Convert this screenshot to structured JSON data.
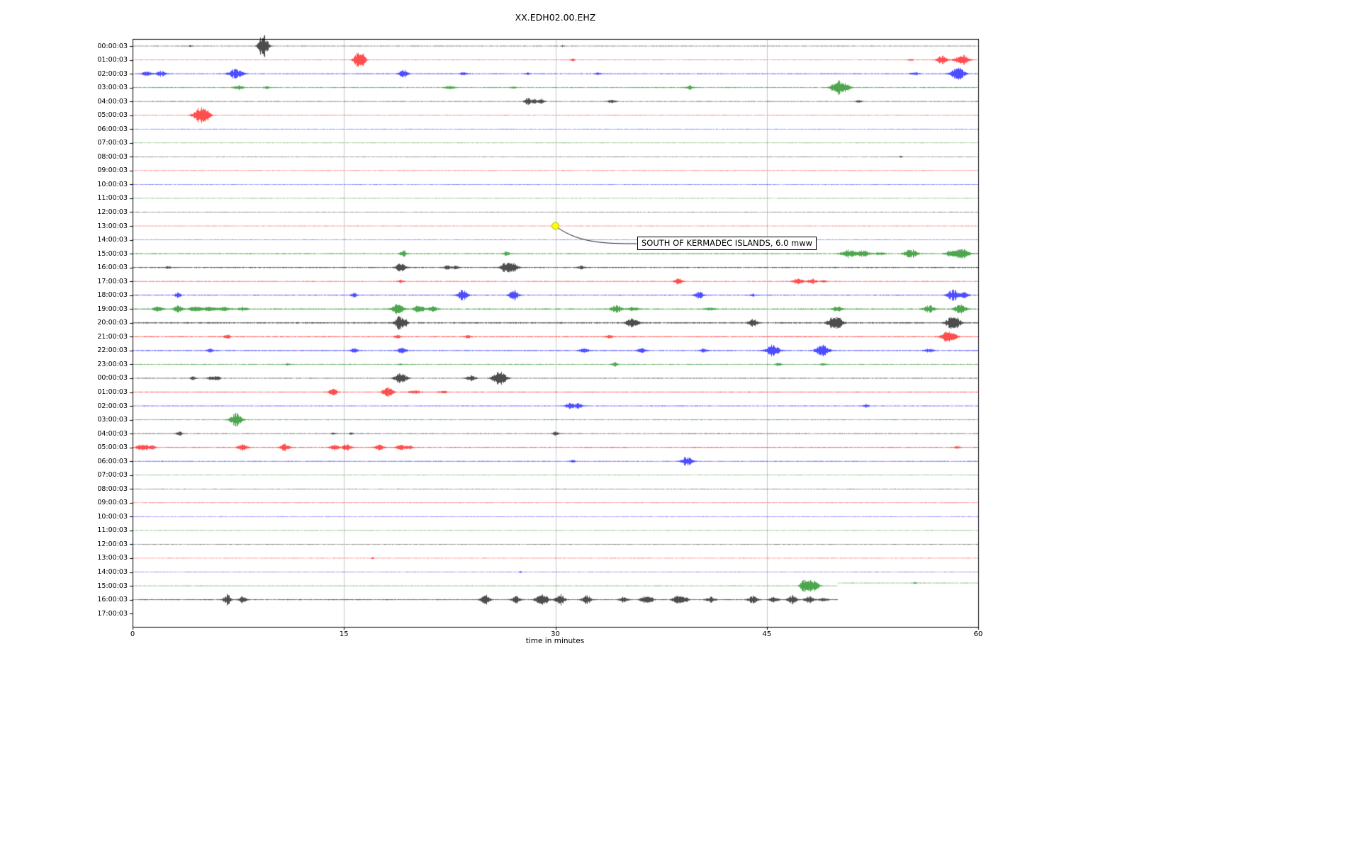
{
  "annotation": {
    "text": "SOUTH OF KERMADEC ISLANDS, 6.0 mww",
    "row_index": 13,
    "minute": 30,
    "marker_color": "#ffff00"
  },
  "chart_data": {
    "type": "line",
    "title": "XX.EDH02.00.EHZ",
    "xlabel": "time in minutes",
    "xlim": [
      0,
      60
    ],
    "x_ticks": [
      "0",
      "15",
      "30",
      "45",
      "60"
    ],
    "grid": "vertical-light",
    "colors_cycle": [
      "#000000",
      "#ff0000",
      "#0000ff",
      "#008000"
    ],
    "events_format": "each event is [minute, half_amplitude_px, gaussian_width_minutes]",
    "rows": [
      {
        "label": "00:00:03",
        "color": "#000000",
        "noise": 0.45,
        "end": 60,
        "events": [
          [
            9.3,
            16,
            0.3
          ],
          [
            9.0,
            5,
            0.15
          ],
          [
            4.1,
            1.5,
            0.1
          ],
          [
            30.5,
            1,
            0.1
          ]
        ]
      },
      {
        "label": "01:00:03",
        "color": "#ff0000",
        "noise": 0.45,
        "end": 60,
        "events": [
          [
            16.0,
            11,
            0.3
          ],
          [
            16.35,
            6,
            0.2
          ],
          [
            31.2,
            1.8,
            0.15
          ],
          [
            55.2,
            1.5,
            0.2
          ],
          [
            57.4,
            6,
            0.35
          ],
          [
            58.8,
            8,
            0.45
          ]
        ]
      },
      {
        "label": "02:00:03",
        "color": "#0000ff",
        "noise": 0.65,
        "end": 60,
        "events": [
          [
            1.0,
            3,
            0.35
          ],
          [
            2.0,
            4,
            0.3
          ],
          [
            7.3,
            8,
            0.45
          ],
          [
            19.2,
            6,
            0.3
          ],
          [
            23.5,
            2,
            0.3
          ],
          [
            28.0,
            1.5,
            0.2
          ],
          [
            33.0,
            1.2,
            0.2
          ],
          [
            55.5,
            2,
            0.3
          ],
          [
            58.5,
            10,
            0.45
          ]
        ]
      },
      {
        "label": "03:00:03",
        "color": "#008000",
        "noise": 0.6,
        "end": 60,
        "events": [
          [
            7.5,
            3,
            0.3
          ],
          [
            9.5,
            2,
            0.2
          ],
          [
            22.5,
            2,
            0.35
          ],
          [
            27.0,
            1.8,
            0.2
          ],
          [
            39.5,
            2.5,
            0.25
          ],
          [
            50.0,
            11,
            0.4
          ],
          [
            50.6,
            5,
            0.3
          ]
        ]
      },
      {
        "label": "04:00:03",
        "color": "#000000",
        "noise": 0.45,
        "end": 60,
        "events": [
          [
            28.0,
            5,
            0.22
          ],
          [
            28.5,
            5,
            0.2
          ],
          [
            29.0,
            4,
            0.2
          ],
          [
            34.0,
            2,
            0.3
          ],
          [
            51.5,
            2,
            0.2
          ]
        ]
      },
      {
        "label": "05:00:03",
        "color": "#ff0000",
        "noise": 0.45,
        "end": 60,
        "events": [
          [
            4.8,
            12,
            0.45
          ],
          [
            5.2,
            6,
            0.3
          ]
        ]
      },
      {
        "label": "06:00:03",
        "color": "#0000ff",
        "noise": 0.4,
        "end": 60,
        "events": []
      },
      {
        "label": "07:00:03",
        "color": "#008000",
        "noise": 0.4,
        "end": 60,
        "events": []
      },
      {
        "label": "08:00:03",
        "color": "#000000",
        "noise": 0.4,
        "end": 60,
        "events": [
          [
            54.5,
            1.3,
            0.1
          ]
        ]
      },
      {
        "label": "09:00:03",
        "color": "#ff0000",
        "noise": 0.4,
        "end": 60,
        "events": []
      },
      {
        "label": "10:00:03",
        "color": "#0000ff",
        "noise": 0.4,
        "end": 60,
        "events": []
      },
      {
        "label": "11:00:03",
        "color": "#008000",
        "noise": 0.4,
        "end": 60,
        "events": []
      },
      {
        "label": "12:00:03",
        "color": "#000000",
        "noise": 0.4,
        "end": 60,
        "events": []
      },
      {
        "label": "13:00:03",
        "color": "#ff0000",
        "noise": 0.4,
        "end": 60,
        "events": []
      },
      {
        "label": "14:00:03",
        "color": "#0000ff",
        "noise": 0.4,
        "end": 60,
        "events": []
      },
      {
        "label": "15:00:03",
        "color": "#008000",
        "noise": 0.75,
        "end": 60,
        "events": [
          [
            19.2,
            5,
            0.2
          ],
          [
            26.5,
            3,
            0.2
          ],
          [
            50.8,
            6,
            0.45
          ],
          [
            51.8,
            5,
            0.4
          ],
          [
            53.0,
            2,
            0.35
          ],
          [
            55.2,
            6,
            0.45
          ],
          [
            58.0,
            4,
            0.35
          ],
          [
            58.8,
            7,
            0.5
          ]
        ]
      },
      {
        "label": "16:00:03",
        "color": "#000000",
        "noise": 0.75,
        "end": 60,
        "events": [
          [
            2.5,
            1.5,
            0.2
          ],
          [
            19.0,
            7,
            0.3
          ],
          [
            22.3,
            3,
            0.22
          ],
          [
            22.9,
            3,
            0.2
          ],
          [
            26.5,
            8,
            0.35
          ],
          [
            27.0,
            6,
            0.3
          ],
          [
            31.8,
            2.5,
            0.2
          ]
        ]
      },
      {
        "label": "17:00:03",
        "color": "#ff0000",
        "noise": 0.55,
        "end": 60,
        "events": [
          [
            19.0,
            2,
            0.2
          ],
          [
            38.7,
            5,
            0.25
          ],
          [
            47.2,
            4,
            0.35
          ],
          [
            48.2,
            4,
            0.3
          ],
          [
            49.0,
            2,
            0.2
          ]
        ]
      },
      {
        "label": "18:00:03",
        "color": "#0000ff",
        "noise": 0.65,
        "end": 60,
        "events": [
          [
            3.2,
            4,
            0.2
          ],
          [
            15.7,
            3,
            0.2
          ],
          [
            23.4,
            8,
            0.32
          ],
          [
            27.0,
            8,
            0.32
          ],
          [
            40.2,
            5,
            0.3
          ],
          [
            44.0,
            1.5,
            0.2
          ],
          [
            58.2,
            8,
            0.38
          ],
          [
            59.0,
            4,
            0.3
          ]
        ]
      },
      {
        "label": "19:00:03",
        "color": "#008000",
        "noise": 0.85,
        "end": 60,
        "events": [
          [
            1.8,
            4,
            0.3
          ],
          [
            3.2,
            5,
            0.3
          ],
          [
            4.5,
            4,
            0.45
          ],
          [
            5.5,
            3,
            0.45
          ],
          [
            6.5,
            3,
            0.4
          ],
          [
            7.8,
            3,
            0.3
          ],
          [
            18.8,
            8,
            0.38
          ],
          [
            20.3,
            5,
            0.38
          ],
          [
            21.3,
            4,
            0.3
          ],
          [
            34.3,
            5,
            0.38
          ],
          [
            35.5,
            3,
            0.3
          ],
          [
            41.0,
            2,
            0.3
          ],
          [
            50.0,
            4,
            0.3
          ],
          [
            56.5,
            5,
            0.38
          ],
          [
            58.7,
            7,
            0.38
          ]
        ]
      },
      {
        "label": "20:00:03",
        "color": "#000000",
        "noise": 0.95,
        "end": 60,
        "events": [
          [
            18.9,
            9,
            0.3
          ],
          [
            19.3,
            5,
            0.2
          ],
          [
            35.3,
            6,
            0.3
          ],
          [
            35.7,
            4,
            0.25
          ],
          [
            44.0,
            5,
            0.3
          ],
          [
            49.7,
            9,
            0.38
          ],
          [
            50.1,
            6,
            0.3
          ],
          [
            58.1,
            9,
            0.38
          ],
          [
            58.5,
            5,
            0.3
          ]
        ]
      },
      {
        "label": "21:00:03",
        "color": "#ff0000",
        "noise": 0.75,
        "end": 60,
        "events": [
          [
            6.7,
            3,
            0.2
          ],
          [
            18.8,
            2.5,
            0.2
          ],
          [
            23.8,
            2.5,
            0.2
          ],
          [
            33.8,
            3,
            0.25
          ],
          [
            57.7,
            7,
            0.38
          ],
          [
            58.2,
            4,
            0.3
          ]
        ]
      },
      {
        "label": "22:00:03",
        "color": "#0000ff",
        "noise": 0.75,
        "end": 60,
        "events": [
          [
            5.5,
            2.5,
            0.2
          ],
          [
            15.7,
            3,
            0.25
          ],
          [
            19.1,
            4,
            0.3
          ],
          [
            32.0,
            3.5,
            0.3
          ],
          [
            36.1,
            3,
            0.3
          ],
          [
            40.5,
            2.5,
            0.25
          ],
          [
            45.4,
            8,
            0.45
          ],
          [
            48.9,
            8,
            0.45
          ],
          [
            56.5,
            3,
            0.3
          ]
        ]
      },
      {
        "label": "23:00:03",
        "color": "#008000",
        "noise": 0.55,
        "end": 60,
        "events": [
          [
            11.0,
            1.5,
            0.15
          ],
          [
            19.0,
            1.5,
            0.15
          ],
          [
            34.2,
            3,
            0.2
          ],
          [
            45.8,
            2,
            0.2
          ],
          [
            49.0,
            1.5,
            0.2
          ]
        ]
      },
      {
        "label": "00:00:03",
        "color": "#000000",
        "noise": 0.55,
        "end": 60,
        "events": [
          [
            4.3,
            2.5,
            0.2
          ],
          [
            5.6,
            3,
            0.28
          ],
          [
            6.0,
            2.5,
            0.2
          ],
          [
            19.0,
            9,
            0.38
          ],
          [
            24.0,
            4,
            0.3
          ],
          [
            25.9,
            9,
            0.38
          ],
          [
            26.3,
            5,
            0.3
          ]
        ]
      },
      {
        "label": "01:00:03",
        "color": "#ff0000",
        "noise": 0.65,
        "end": 60,
        "events": [
          [
            14.2,
            5,
            0.3
          ],
          [
            18.1,
            7,
            0.35
          ],
          [
            20.0,
            2,
            0.45
          ],
          [
            22.0,
            1.5,
            0.3
          ]
        ]
      },
      {
        "label": "02:00:03",
        "color": "#0000ff",
        "noise": 0.55,
        "end": 60,
        "events": [
          [
            31.0,
            4,
            0.3
          ],
          [
            31.6,
            4,
            0.28
          ],
          [
            52.0,
            2.5,
            0.2
          ]
        ]
      },
      {
        "label": "03:00:03",
        "color": "#008000",
        "noise": 0.55,
        "end": 60,
        "events": [
          [
            7.3,
            10,
            0.38
          ]
        ]
      },
      {
        "label": "04:00:03",
        "color": "#000000",
        "noise": 0.55,
        "end": 60,
        "events": [
          [
            3.3,
            3,
            0.2
          ],
          [
            14.2,
            1.5,
            0.15
          ],
          [
            15.5,
            1.5,
            0.15
          ],
          [
            30.0,
            2.5,
            0.2
          ]
        ]
      },
      {
        "label": "05:00:03",
        "color": "#ff0000",
        "noise": 0.65,
        "end": 60,
        "events": [
          [
            0.5,
            4,
            0.25
          ],
          [
            0.9,
            4,
            0.25
          ],
          [
            1.4,
            3,
            0.2
          ],
          [
            7.8,
            5,
            0.3
          ],
          [
            10.8,
            5,
            0.3
          ],
          [
            14.3,
            4,
            0.3
          ],
          [
            15.2,
            5,
            0.3
          ],
          [
            17.5,
            4,
            0.3
          ],
          [
            19.0,
            4,
            0.3
          ],
          [
            19.6,
            3,
            0.2
          ],
          [
            58.5,
            2,
            0.2
          ]
        ]
      },
      {
        "label": "06:00:03",
        "color": "#0000ff",
        "noise": 0.55,
        "end": 60,
        "events": [
          [
            31.2,
            1.5,
            0.2
          ],
          [
            39.3,
            7,
            0.38
          ]
        ]
      },
      {
        "label": "07:00:03",
        "color": "#008000",
        "noise": 0.4,
        "end": 60,
        "events": []
      },
      {
        "label": "08:00:03",
        "color": "#000000",
        "noise": 0.4,
        "end": 60,
        "events": []
      },
      {
        "label": "09:00:03",
        "color": "#ff0000",
        "noise": 0.4,
        "end": 60,
        "events": []
      },
      {
        "label": "10:00:03",
        "color": "#0000ff",
        "noise": 0.4,
        "end": 60,
        "events": []
      },
      {
        "label": "11:00:03",
        "color": "#008000",
        "noise": 0.4,
        "end": 60,
        "events": []
      },
      {
        "label": "12:00:03",
        "color": "#000000",
        "noise": 0.4,
        "end": 60,
        "events": []
      },
      {
        "label": "13:00:03",
        "color": "#ff0000",
        "noise": 0.4,
        "end": 60,
        "events": [
          [
            17.0,
            1.3,
            0.1
          ]
        ]
      },
      {
        "label": "14:00:03",
        "color": "#0000ff",
        "noise": 0.4,
        "end": 60,
        "events": [
          [
            27.5,
            1,
            0.1
          ]
        ]
      },
      {
        "label": "15:00:03",
        "color": "#008000",
        "noise": 0.45,
        "end": 60,
        "events": [
          [
            47.6,
            10,
            0.25
          ],
          [
            48.1,
            8,
            0.3
          ],
          [
            48.5,
            5,
            0.25
          ],
          [
            55.5,
            1,
            0.1
          ]
        ],
        "offset_after": {
          "t": 50,
          "dy": -4
        }
      },
      {
        "label": "16:00:03",
        "color": "#000000",
        "noise": 0.65,
        "end": 50,
        "events": [
          [
            6.7,
            8,
            0.25
          ],
          [
            7.8,
            6,
            0.25
          ],
          [
            25.0,
            7,
            0.3
          ],
          [
            27.2,
            5,
            0.3
          ],
          [
            28.8,
            6,
            0.3
          ],
          [
            29.2,
            7,
            0.3
          ],
          [
            30.3,
            9,
            0.3
          ],
          [
            32.2,
            6,
            0.3
          ],
          [
            34.8,
            4,
            0.3
          ],
          [
            36.3,
            5,
            0.3
          ],
          [
            36.7,
            4,
            0.25
          ],
          [
            38.6,
            5,
            0.3
          ],
          [
            39.1,
            5,
            0.3
          ],
          [
            41.0,
            4,
            0.3
          ],
          [
            44.0,
            6,
            0.3
          ],
          [
            45.5,
            4,
            0.3
          ],
          [
            46.8,
            7,
            0.3
          ],
          [
            48.0,
            5,
            0.3
          ],
          [
            49.0,
            3,
            0.3
          ]
        ]
      },
      {
        "label": "17:00:03",
        "color": "#ff0000",
        "noise": 0.4,
        "end": 0,
        "events": []
      }
    ]
  }
}
